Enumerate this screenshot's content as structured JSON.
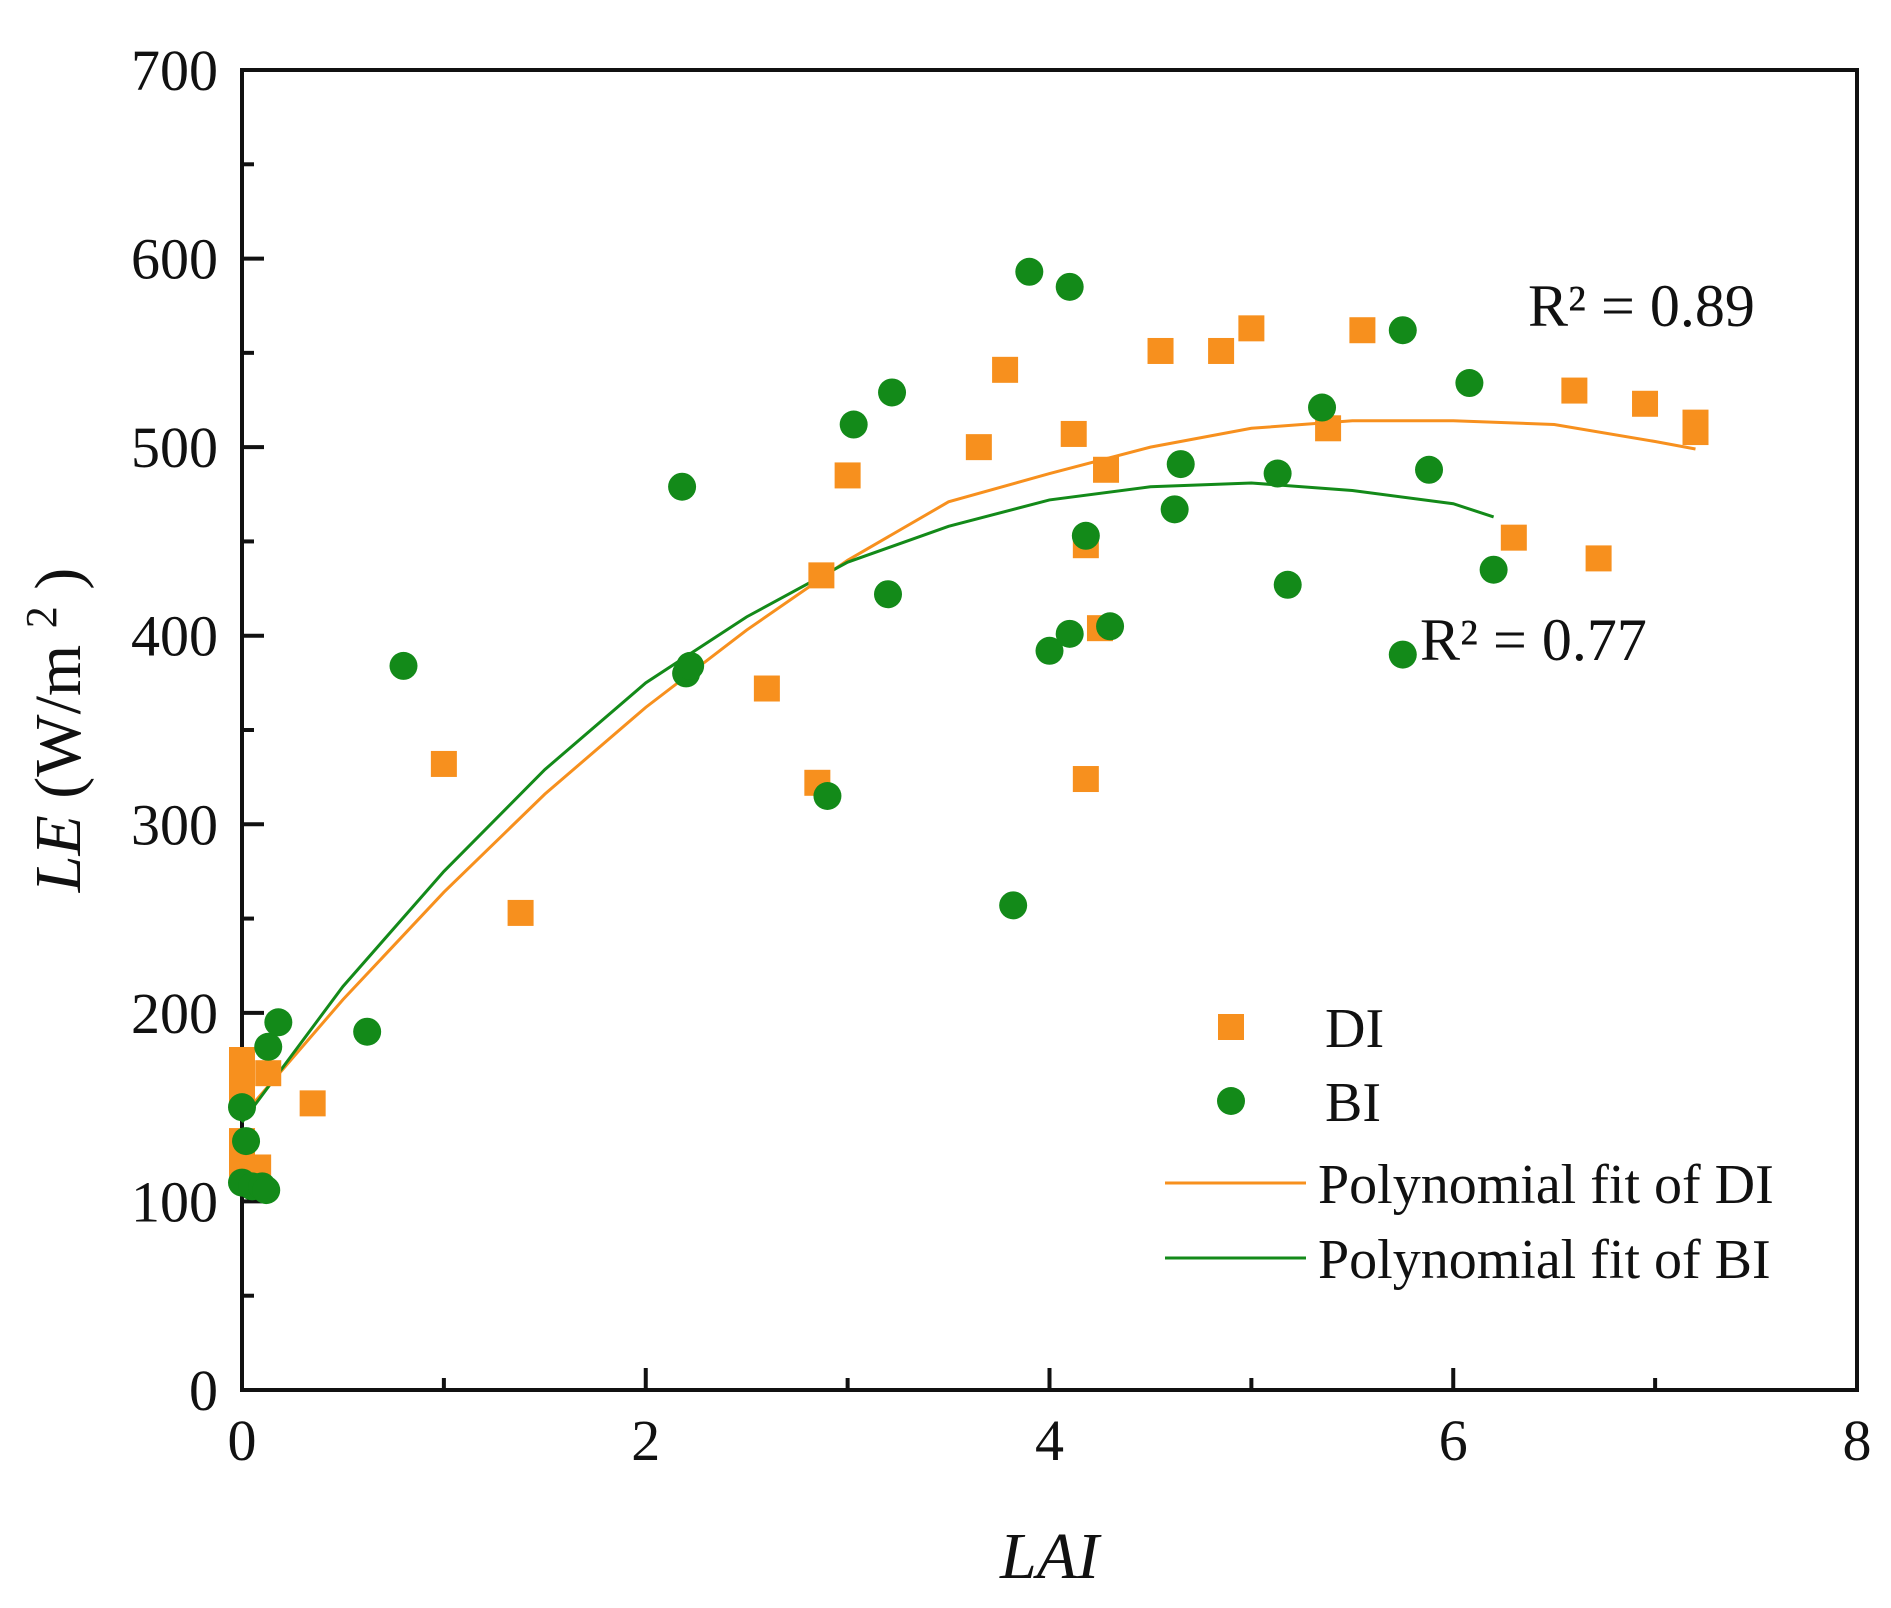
{
  "chart_data": {
    "type": "scatter",
    "xlabel": "LAI",
    "ylabel": {
      "italic": "LE",
      "unit_prefix": " (W/m",
      "unit_sup": "2",
      "unit_suffix": ")"
    },
    "xlim": [
      0,
      8
    ],
    "ylim": [
      0,
      700
    ],
    "x_ticks": [
      0,
      2,
      4,
      6,
      8
    ],
    "y_ticks": [
      0,
      100,
      200,
      300,
      400,
      500,
      600,
      700
    ],
    "grid": false,
    "legend": {
      "placement": "bottom-right",
      "items": [
        {
          "label": "DI",
          "kind": "square",
          "color": "#f7901e"
        },
        {
          "label": "BI",
          "kind": "circle",
          "color": "#138a19"
        },
        {
          "label": "Polynomial fit of DI",
          "kind": "line",
          "color": "#f7901e"
        },
        {
          "label": "Polynomial fit of BI",
          "kind": "line",
          "color": "#138a19"
        }
      ]
    },
    "series": [
      {
        "name": "DI",
        "marker": "square",
        "color": "#f7901e",
        "points": [
          [
            0.0,
            175
          ],
          [
            0.0,
            170
          ],
          [
            0.0,
            160
          ],
          [
            0.0,
            155
          ],
          [
            0.0,
            132
          ],
          [
            0.0,
            128
          ],
          [
            0.0,
            125
          ],
          [
            0.0,
            120
          ],
          [
            0.08,
            118
          ],
          [
            0.13,
            168
          ],
          [
            0.35,
            152
          ],
          [
            1.0,
            332
          ],
          [
            1.38,
            253
          ],
          [
            2.6,
            372
          ],
          [
            2.85,
            322
          ],
          [
            2.87,
            432
          ],
          [
            3.0,
            485
          ],
          [
            3.65,
            500
          ],
          [
            3.78,
            541
          ],
          [
            4.12,
            507
          ],
          [
            4.18,
            448
          ],
          [
            4.18,
            324
          ],
          [
            4.25,
            404
          ],
          [
            4.28,
            488
          ],
          [
            4.55,
            551
          ],
          [
            4.85,
            551
          ],
          [
            5.0,
            563
          ],
          [
            5.38,
            510
          ],
          [
            5.55,
            562
          ],
          [
            6.3,
            452
          ],
          [
            6.6,
            530
          ],
          [
            6.72,
            441
          ],
          [
            6.95,
            523
          ],
          [
            7.2,
            513
          ],
          [
            7.2,
            508
          ]
        ]
      },
      {
        "name": "BI",
        "marker": "circle",
        "color": "#138a19",
        "points": [
          [
            0.0,
            110
          ],
          [
            0.0,
            150
          ],
          [
            0.02,
            132
          ],
          [
            0.05,
            108
          ],
          [
            0.1,
            108
          ],
          [
            0.12,
            106
          ],
          [
            0.13,
            182
          ],
          [
            0.18,
            195
          ],
          [
            0.62,
            190
          ],
          [
            0.8,
            384
          ],
          [
            2.18,
            479
          ],
          [
            2.2,
            380
          ],
          [
            2.22,
            384
          ],
          [
            2.9,
            315
          ],
          [
            3.03,
            512
          ],
          [
            3.2,
            422
          ],
          [
            3.22,
            529
          ],
          [
            3.82,
            257
          ],
          [
            3.9,
            593
          ],
          [
            4.0,
            392
          ],
          [
            4.1,
            585
          ],
          [
            4.1,
            401
          ],
          [
            4.18,
            453
          ],
          [
            4.3,
            405
          ],
          [
            4.62,
            467
          ],
          [
            4.65,
            491
          ],
          [
            5.13,
            486
          ],
          [
            5.18,
            427
          ],
          [
            5.35,
            521
          ],
          [
            5.75,
            562
          ],
          [
            5.75,
            390
          ],
          [
            5.88,
            488
          ],
          [
            6.08,
            534
          ],
          [
            6.2,
            435
          ]
        ]
      }
    ],
    "fits": [
      {
        "name": "Polynomial fit of DI",
        "color": "#f7901e",
        "x": [
          0.0,
          0.5,
          1.0,
          1.5,
          2.0,
          2.5,
          3.0,
          3.5,
          4.0,
          4.5,
          5.0,
          5.5,
          6.0,
          6.5,
          7.0,
          7.2
        ],
        "y": [
          145,
          207,
          264,
          316,
          362,
          403,
          440,
          471,
          486,
          500,
          510,
          514,
          514,
          512,
          503,
          499
        ],
        "r2_text": "R² = 0.89"
      },
      {
        "name": "Polynomial fit of BI",
        "color": "#138a19",
        "x": [
          0.0,
          0.5,
          1.0,
          1.5,
          2.0,
          2.5,
          3.0,
          3.5,
          4.0,
          4.5,
          5.0,
          5.5,
          6.0,
          6.2
        ],
        "y": [
          142,
          214,
          275,
          329,
          375,
          410,
          439,
          458,
          472,
          479,
          481,
          477,
          470,
          463
        ],
        "r2_text": "R² = 0.77"
      }
    ]
  }
}
